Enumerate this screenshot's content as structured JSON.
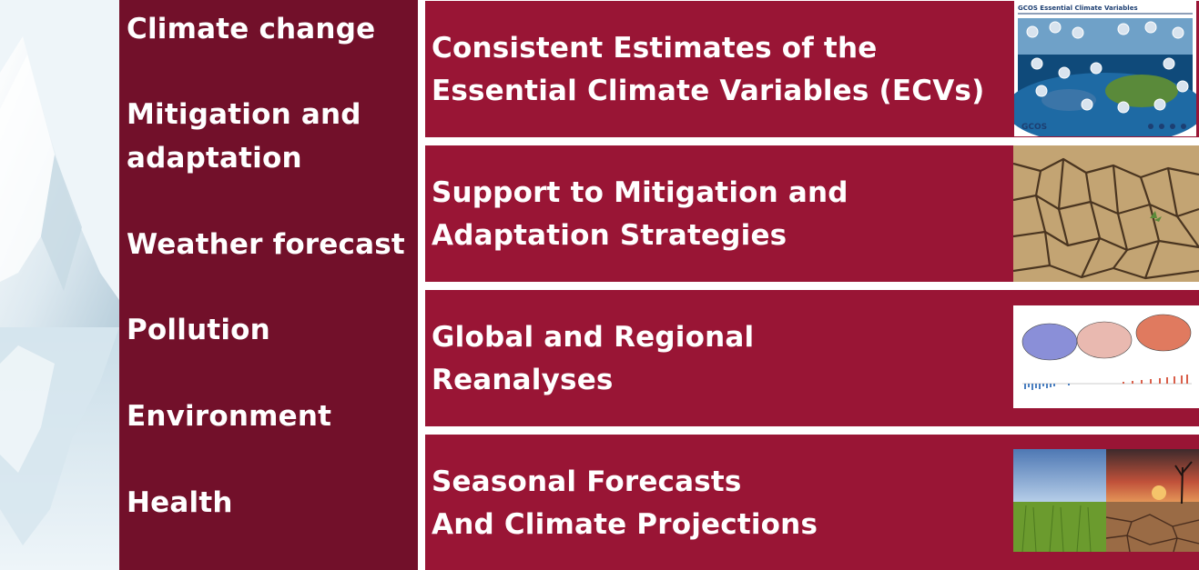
{
  "left_panel": {
    "items": [
      {
        "label": "Climate change"
      },
      {
        "label": "Mitigation and\nadaptation"
      },
      {
        "label": "Weather forecast"
      },
      {
        "label": "Pollution"
      },
      {
        "label": "Environment"
      },
      {
        "label": "Health"
      }
    ]
  },
  "right_panel": {
    "rows": [
      {
        "title": "Consistent Estimates of the\nEssential Climate Variables (ECVs)",
        "image": "gcos-ecv-poster",
        "image_caption": "GCOS Essential Climate Variables",
        "image_logo": "GCOS"
      },
      {
        "title": "Support to Mitigation and\nAdaptation Strategies",
        "image": "cracked-earth-photo"
      },
      {
        "title": "Global and Regional\nReanalyses",
        "image": "temperature-anomaly-maps"
      },
      {
        "title": "Seasonal Forecasts\nAnd Climate Projections",
        "image": "green-field-vs-drought-photo"
      }
    ]
  },
  "colors": {
    "left_column": "#72102a",
    "right_rows": "#991535",
    "text": "#ffffff"
  }
}
